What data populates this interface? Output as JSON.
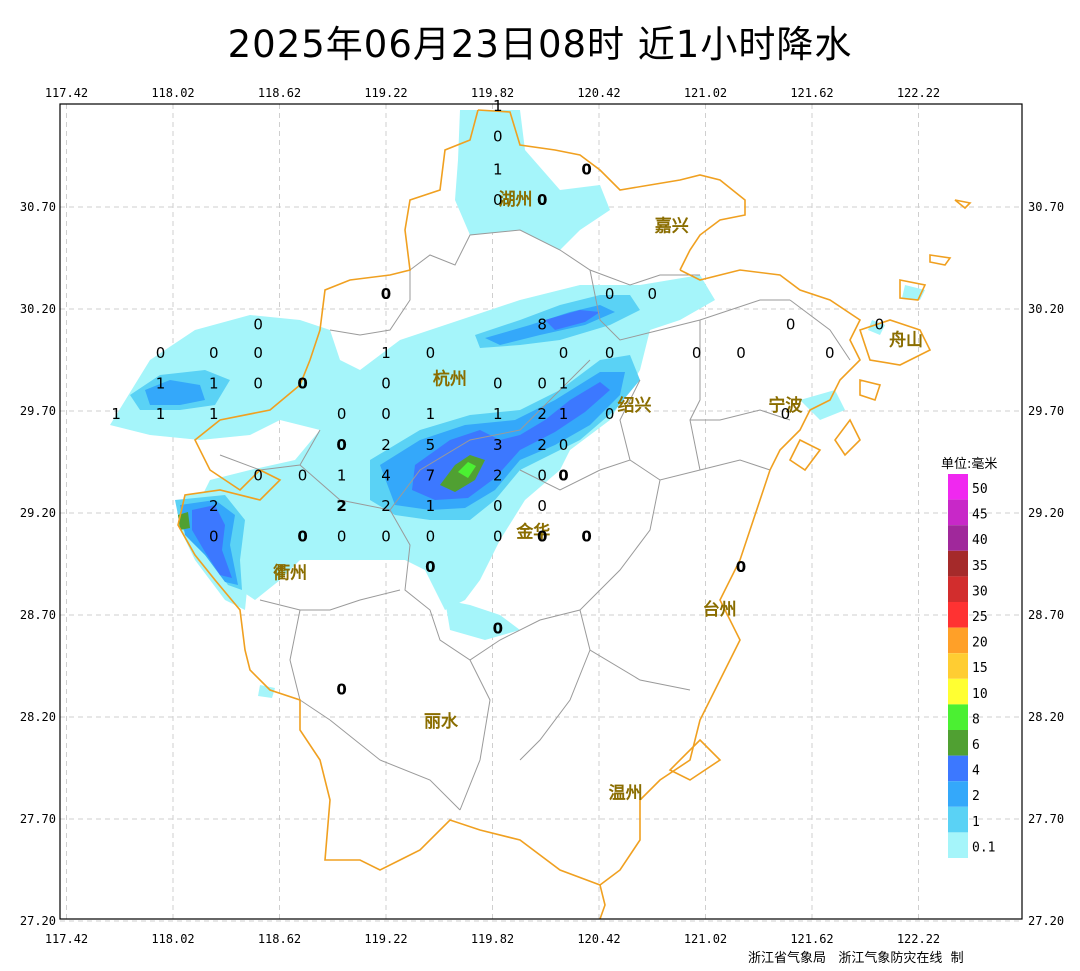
{
  "title": "2025年06月23日08时  近1小时降水",
  "lon_ticks": [
    "117.42",
    "118.02",
    "118.62",
    "119.22",
    "119.82",
    "120.42",
    "121.02",
    "121.62",
    "122.22"
  ],
  "lat_ticks": [
    "30.70",
    "30.20",
    "29.70",
    "29.20",
    "28.70",
    "28.20",
    "27.70",
    "27.20"
  ],
  "cities": [
    {
      "name": "湖州",
      "lon": 119.95,
      "lat": 30.71
    },
    {
      "name": "嘉兴",
      "lon": 120.83,
      "lat": 30.58
    },
    {
      "name": "杭州",
      "lon": 119.58,
      "lat": 29.83
    },
    {
      "name": "绍兴",
      "lon": 120.62,
      "lat": 29.7
    },
    {
      "name": "宁波",
      "lon": 121.47,
      "lat": 29.7
    },
    {
      "name": "舟山",
      "lon": 122.15,
      "lat": 30.02
    },
    {
      "name": "衢州",
      "lon": 118.68,
      "lat": 28.88
    },
    {
      "name": "金华",
      "lon": 120.05,
      "lat": 29.08
    },
    {
      "name": "台州",
      "lon": 121.1,
      "lat": 28.7
    },
    {
      "name": "丽水",
      "lon": 119.53,
      "lat": 28.15
    },
    {
      "name": "温州",
      "lon": 120.57,
      "lat": 27.8
    }
  ],
  "stations": [
    {
      "v": "1",
      "lon": 119.85,
      "lat": 31.17
    },
    {
      "v": "0",
      "lon": 119.85,
      "lat": 31.02
    },
    {
      "v": "1",
      "lon": 119.85,
      "lat": 30.86
    },
    {
      "v": "0",
      "lon": 120.35,
      "lat": 30.86,
      "b": 1
    },
    {
      "v": "0",
      "lon": 119.85,
      "lat": 30.71
    },
    {
      "v": "0",
      "lon": 120.1,
      "lat": 30.71,
      "b": 1
    },
    {
      "v": "0",
      "lon": 119.22,
      "lat": 30.25,
      "b": 1
    },
    {
      "v": "0",
      "lon": 120.48,
      "lat": 30.25
    },
    {
      "v": "0",
      "lon": 120.72,
      "lat": 30.25
    },
    {
      "v": "8",
      "lon": 120.1,
      "lat": 30.1
    },
    {
      "v": "0",
      "lon": 121.5,
      "lat": 30.1
    },
    {
      "v": "0",
      "lon": 122.0,
      "lat": 30.1
    },
    {
      "v": "0",
      "lon": 118.5,
      "lat": 30.1
    },
    {
      "v": "0",
      "lon": 117.95,
      "lat": 29.96
    },
    {
      "v": "0",
      "lon": 118.25,
      "lat": 29.96
    },
    {
      "v": "0",
      "lon": 118.5,
      "lat": 29.96
    },
    {
      "v": "1",
      "lon": 119.22,
      "lat": 29.96
    },
    {
      "v": "0",
      "lon": 119.47,
      "lat": 29.96
    },
    {
      "v": "0",
      "lon": 120.22,
      "lat": 29.96
    },
    {
      "v": "0",
      "lon": 120.48,
      "lat": 29.96
    },
    {
      "v": "0",
      "lon": 120.97,
      "lat": 29.96
    },
    {
      "v": "0",
      "lon": 121.22,
      "lat": 29.96
    },
    {
      "v": "0",
      "lon": 121.72,
      "lat": 29.96
    },
    {
      "v": "1",
      "lon": 117.95,
      "lat": 29.81
    },
    {
      "v": "1",
      "lon": 118.25,
      "lat": 29.81
    },
    {
      "v": "0",
      "lon": 118.5,
      "lat": 29.81
    },
    {
      "v": "0",
      "lon": 118.75,
      "lat": 29.81,
      "b": 1
    },
    {
      "v": "0",
      "lon": 119.22,
      "lat": 29.81
    },
    {
      "v": "0",
      "lon": 119.85,
      "lat": 29.81
    },
    {
      "v": "0",
      "lon": 120.1,
      "lat": 29.81
    },
    {
      "v": "1",
      "lon": 120.22,
      "lat": 29.81
    },
    {
      "v": "1",
      "lon": 117.7,
      "lat": 29.66
    },
    {
      "v": "1",
      "lon": 117.95,
      "lat": 29.66
    },
    {
      "v": "1",
      "lon": 118.25,
      "lat": 29.66
    },
    {
      "v": "0",
      "lon": 118.97,
      "lat": 29.66
    },
    {
      "v": "0",
      "lon": 119.22,
      "lat": 29.66
    },
    {
      "v": "1",
      "lon": 119.47,
      "lat": 29.66
    },
    {
      "v": "1",
      "lon": 119.85,
      "lat": 29.66
    },
    {
      "v": "2",
      "lon": 120.1,
      "lat": 29.66
    },
    {
      "v": "1",
      "lon": 120.22,
      "lat": 29.66
    },
    {
      "v": "0",
      "lon": 120.48,
      "lat": 29.66
    },
    {
      "v": "0",
      "lon": 121.47,
      "lat": 29.66
    },
    {
      "v": "0",
      "lon": 118.97,
      "lat": 29.51,
      "b": 1
    },
    {
      "v": "2",
      "lon": 119.22,
      "lat": 29.51
    },
    {
      "v": "5",
      "lon": 119.47,
      "lat": 29.51
    },
    {
      "v": "3",
      "lon": 119.85,
      "lat": 29.51
    },
    {
      "v": "2",
      "lon": 120.1,
      "lat": 29.51
    },
    {
      "v": "0",
      "lon": 120.22,
      "lat": 29.51
    },
    {
      "v": "0",
      "lon": 118.5,
      "lat": 29.36
    },
    {
      "v": "0",
      "lon": 118.75,
      "lat": 29.36
    },
    {
      "v": "1",
      "lon": 118.97,
      "lat": 29.36
    },
    {
      "v": "4",
      "lon": 119.22,
      "lat": 29.36
    },
    {
      "v": "7",
      "lon": 119.47,
      "lat": 29.36
    },
    {
      "v": "2",
      "lon": 119.85,
      "lat": 29.36
    },
    {
      "v": "0",
      "lon": 120.1,
      "lat": 29.36
    },
    {
      "v": "0",
      "lon": 120.22,
      "lat": 29.36,
      "b": 1
    },
    {
      "v": "2",
      "lon": 118.25,
      "lat": 29.21
    },
    {
      "v": "2",
      "lon": 118.97,
      "lat": 29.21,
      "b": 1
    },
    {
      "v": "2",
      "lon": 119.22,
      "lat": 29.21
    },
    {
      "v": "1",
      "lon": 119.47,
      "lat": 29.21
    },
    {
      "v": "0",
      "lon": 119.85,
      "lat": 29.21
    },
    {
      "v": "0",
      "lon": 120.1,
      "lat": 29.21
    },
    {
      "v": "0",
      "lon": 118.25,
      "lat": 29.06
    },
    {
      "v": "0",
      "lon": 118.75,
      "lat": 29.06,
      "b": 1
    },
    {
      "v": "0",
      "lon": 118.97,
      "lat": 29.06
    },
    {
      "v": "0",
      "lon": 119.22,
      "lat": 29.06
    },
    {
      "v": "0",
      "lon": 119.47,
      "lat": 29.06
    },
    {
      "v": "0",
      "lon": 119.85,
      "lat": 29.06
    },
    {
      "v": "0",
      "lon": 120.1,
      "lat": 29.06,
      "b": 1
    },
    {
      "v": "0",
      "lon": 120.35,
      "lat": 29.06,
      "b": 1
    },
    {
      "v": "0",
      "lon": 119.47,
      "lat": 28.91,
      "b": 1
    },
    {
      "v": "0",
      "lon": 121.22,
      "lat": 28.91,
      "b": 1
    },
    {
      "v": "0",
      "lon": 119.85,
      "lat": 28.61,
      "b": 1
    },
    {
      "v": "0",
      "lon": 118.97,
      "lat": 28.31,
      "b": 1
    }
  ],
  "legend": {
    "title": "单位:毫米",
    "items": [
      {
        "label": "50",
        "color": "#f028f0"
      },
      {
        "label": "45",
        "color": "#c828c8"
      },
      {
        "label": "40",
        "color": "#a0289b"
      },
      {
        "label": "35",
        "color": "#a52a2a"
      },
      {
        "label": "30",
        "color": "#d22d2d"
      },
      {
        "label": "25",
        "color": "#ff3232"
      },
      {
        "label": "20",
        "color": "#ffa028"
      },
      {
        "label": "15",
        "color": "#ffcd32"
      },
      {
        "label": "10",
        "color": "#ffff32"
      },
      {
        "label": "8",
        "color": "#4bf032"
      },
      {
        "label": "6",
        "color": "#50a032"
      },
      {
        "label": "4",
        "color": "#3c78ff"
      },
      {
        "label": "2",
        "color": "#34a8fa"
      },
      {
        "label": "1",
        "color": "#5ad2f5"
      },
      {
        "label": "0.1",
        "color": "#a5f5fa"
      }
    ]
  },
  "credit": "浙江省气象局   浙江气象防灾在线  制"
}
